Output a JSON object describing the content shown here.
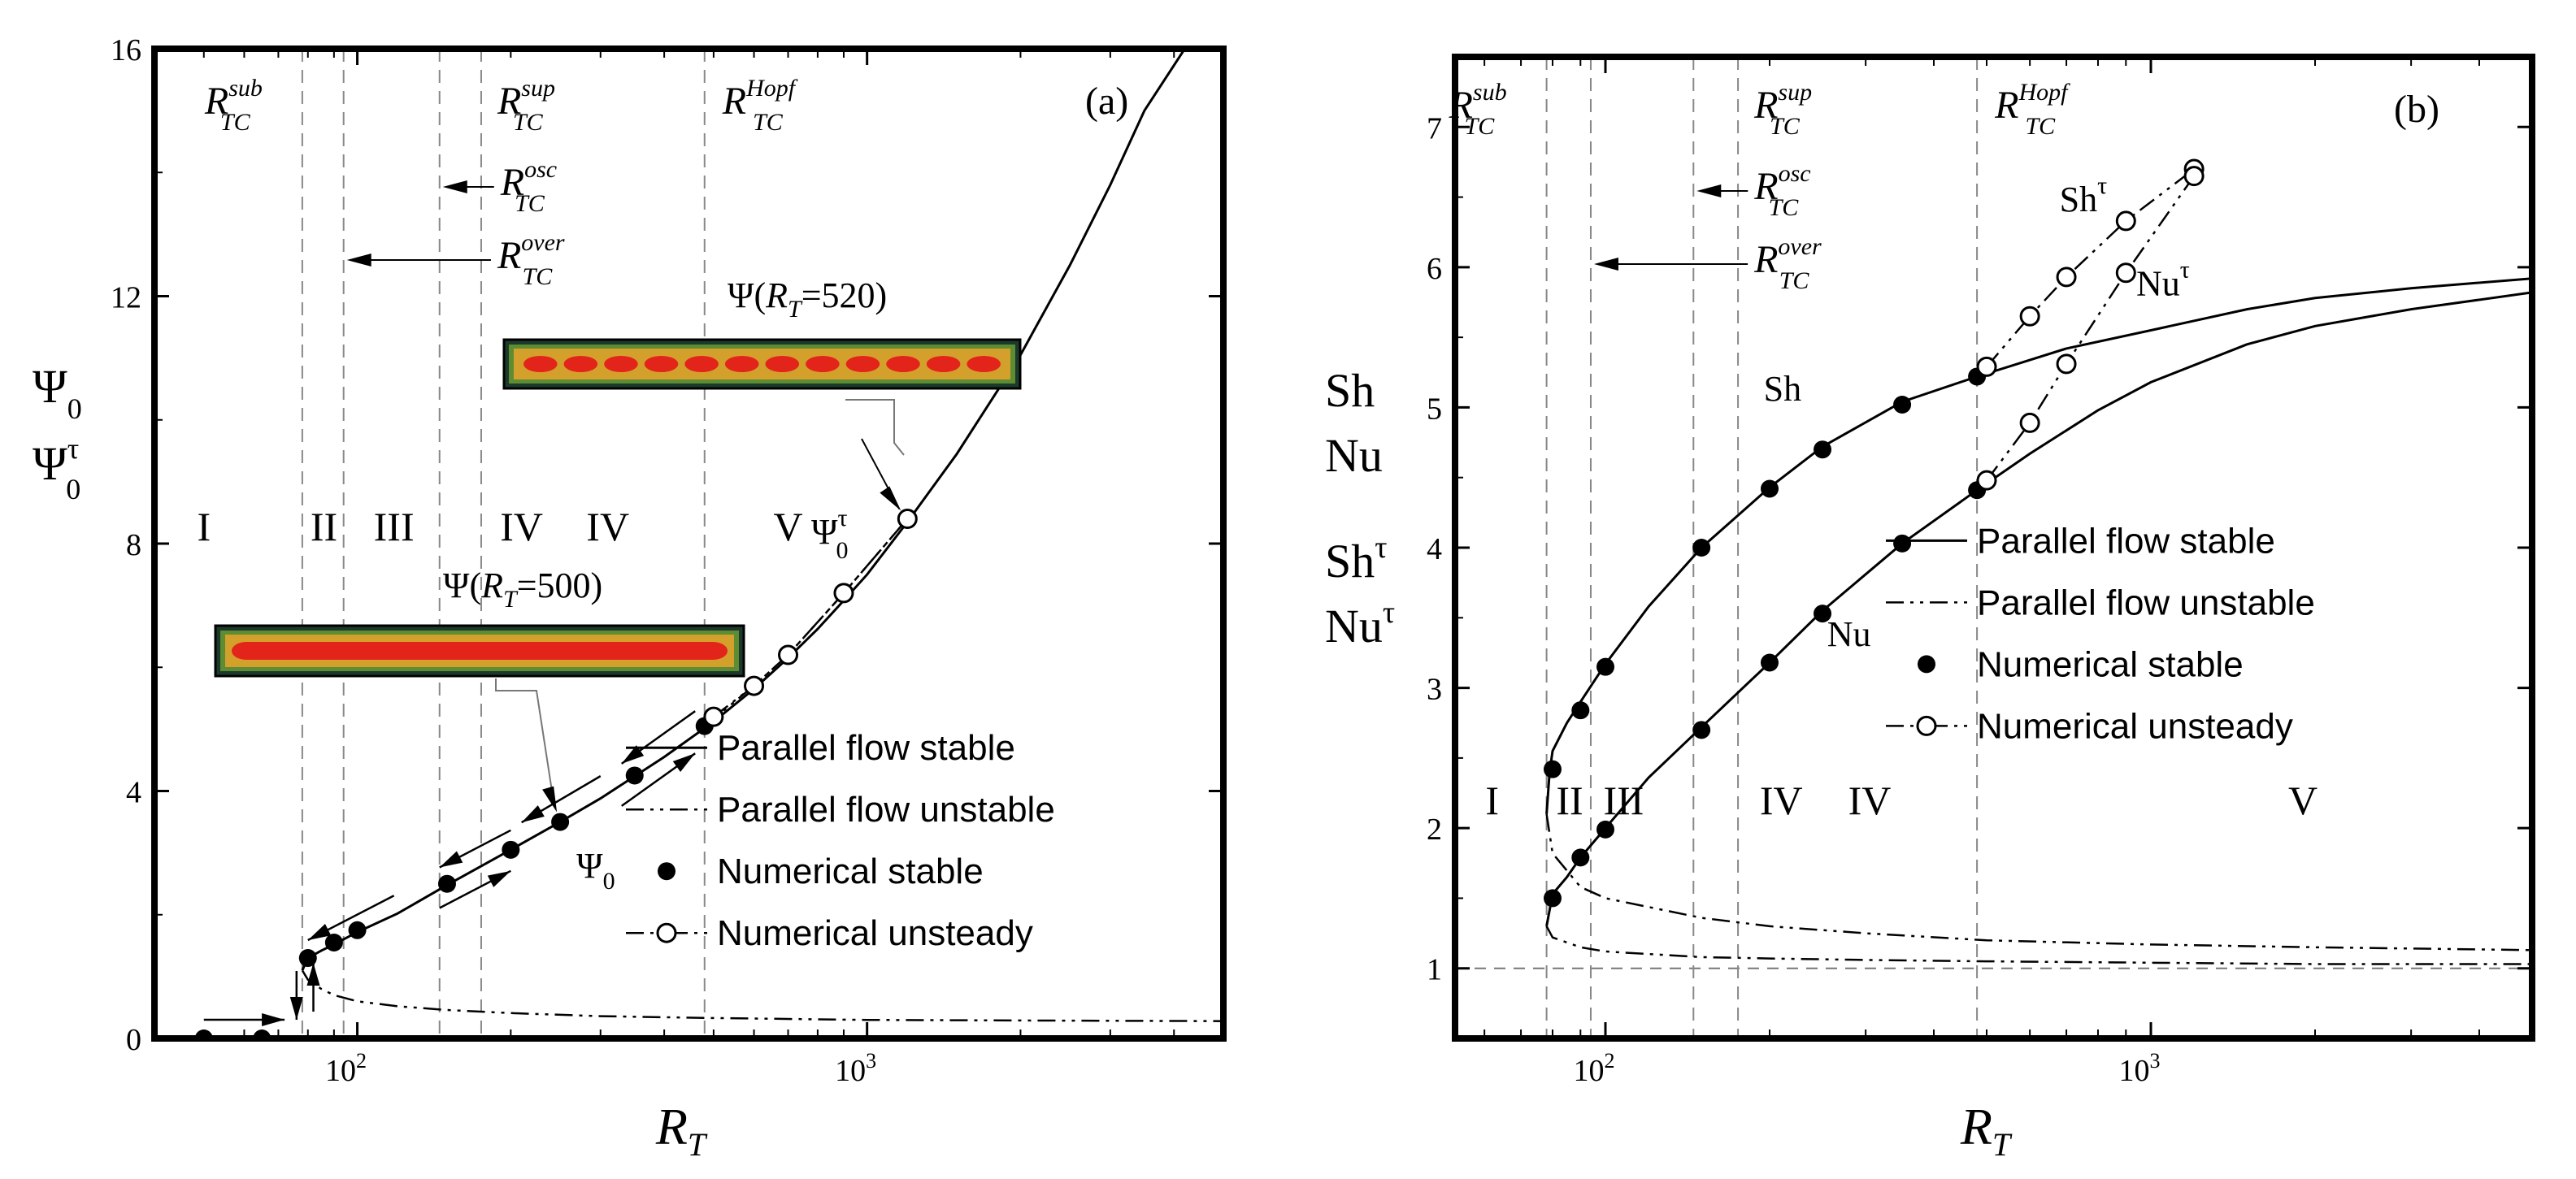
{
  "chart_data": [
    {
      "type": "line",
      "panel_label": "(a)",
      "xlabel": "R_T",
      "xscale": "log",
      "xlim": [
        40,
        5000
      ],
      "xticks": [
        {
          "value": 100,
          "label": "10^2"
        },
        {
          "value": 1000,
          "label": "10^3"
        }
      ],
      "ylim": [
        0,
        16
      ],
      "yticks": [
        0,
        4,
        8,
        12,
        16
      ],
      "ylabels": [
        "Ψ0",
        "Ψ0τ"
      ],
      "thresholds": [
        {
          "name": "R_TC^sub",
          "x": 78,
          "label": "R",
          "sub": "TC",
          "sup": "sub"
        },
        {
          "name": "R_TC^over",
          "x": 94,
          "label": "R",
          "sub": "TC",
          "sup": "over"
        },
        {
          "name": "R_TC^osc",
          "x": 145,
          "label": "R",
          "sub": "TC",
          "sup": "osc"
        },
        {
          "name": "R_TC^sup",
          "x": 175,
          "label": "R",
          "sub": "TC",
          "sup": "sup"
        },
        {
          "name": "R_TC^Hopf",
          "x": 480,
          "label": "R",
          "sub": "TC",
          "sup": "Hopf"
        }
      ],
      "regions": [
        "I",
        "II",
        "III",
        "IV",
        "IV",
        "V"
      ],
      "series": [
        {
          "name": "Parallel flow stable",
          "style": "solid",
          "x": [
            78,
            80,
            85,
            90,
            100,
            120,
            150,
            200,
            250,
            300,
            400,
            500,
            600,
            700,
            800,
            900,
            1000,
            1200,
            1500,
            2000,
            2500,
            3000,
            3500,
            4200
          ],
          "y": [
            1.1,
            1.3,
            1.42,
            1.52,
            1.72,
            2.02,
            2.48,
            3.05,
            3.5,
            3.88,
            4.55,
            5.12,
            5.65,
            6.15,
            6.62,
            7.08,
            7.5,
            8.35,
            9.45,
            11.05,
            12.5,
            13.8,
            15.0,
            16.0
          ]
        },
        {
          "name": "Parallel flow unstable",
          "style": "dashdot",
          "x": [
            78,
            80,
            85,
            90,
            100,
            120,
            150,
            200,
            300,
            500,
            1000,
            2000,
            5000
          ],
          "y": [
            1.1,
            0.95,
            0.8,
            0.7,
            0.6,
            0.52,
            0.46,
            0.41,
            0.36,
            0.33,
            0.3,
            0.29,
            0.28
          ]
        },
        {
          "name": "Numerical stable",
          "style": "filled-marker",
          "x": [
            50,
            65,
            80,
            90,
            100,
            150,
            200,
            250,
            350,
            480
          ],
          "y": [
            0,
            0,
            1.3,
            1.55,
            1.75,
            2.5,
            3.05,
            3.5,
            4.25,
            5.05
          ]
        },
        {
          "name": "Numerical unsteady",
          "style": "open-marker",
          "x": [
            500,
            600,
            700,
            900,
            1200
          ],
          "y": [
            5.2,
            5.7,
            6.2,
            7.2,
            8.4
          ]
        },
        {
          "name": "Ψ0τ curve",
          "style": "dashdot",
          "x": [
            480,
            600,
            700,
            900,
            1200
          ],
          "y": [
            5.05,
            5.7,
            6.2,
            7.2,
            8.4
          ]
        }
      ],
      "legend": [
        "Parallel flow stable",
        "Parallel flow unstable",
        "Numerical stable",
        "Numerical unsteady"
      ],
      "annotations": [
        "Ψ(R_T=520)",
        "Ψ(R_T=500)",
        "Ψ0",
        "Ψ0τ"
      ],
      "inset_labels": {
        "top": {
          "base": "Ψ(",
          "var": "R",
          "sub": "T",
          "rest": "=520)"
        },
        "bottom": {
          "base": "Ψ(",
          "var": "R",
          "sub": "T",
          "rest": "=500)"
        }
      },
      "curve_labels": {
        "stable": "Ψ",
        "stable_sub": "0",
        "unsteady": "Ψ",
        "unsteady_sub": "0",
        "unsteady_sup": "τ"
      }
    },
    {
      "type": "line",
      "panel_label": "(b)",
      "xlabel": "R_T",
      "xscale": "log",
      "xlim": [
        53,
        5000
      ],
      "xticks": [
        {
          "value": 100,
          "label": "10^2"
        },
        {
          "value": 1000,
          "label": "10^3"
        }
      ],
      "ylim": [
        0.5,
        7.5
      ],
      "yticks": [
        1,
        2,
        3,
        4,
        5,
        6,
        7
      ],
      "ylabels": [
        "Sh",
        "Nu",
        "Shτ",
        "Nuτ"
      ],
      "reference_line": {
        "y": 1,
        "style": "dashed"
      },
      "thresholds": [
        {
          "name": "R_TC^sub",
          "x": 78,
          "label": "R",
          "sub": "TC",
          "sup": "sub"
        },
        {
          "name": "R_TC^over",
          "x": 94,
          "label": "R",
          "sub": "TC",
          "sup": "over"
        },
        {
          "name": "R_TC^osc",
          "x": 145,
          "label": "R",
          "sub": "TC",
          "sup": "osc"
        },
        {
          "name": "R_TC^sup",
          "x": 175,
          "label": "R",
          "sub": "TC",
          "sup": "sup"
        },
        {
          "name": "R_TC^Hopf",
          "x": 480,
          "label": "R",
          "sub": "TC",
          "sup": "Hopf"
        }
      ],
      "regions": [
        "I",
        "II",
        "III",
        "IV",
        "IV",
        "V"
      ],
      "series": [
        {
          "name": "Sh parallel stable",
          "style": "solid",
          "x": [
            78,
            79,
            80,
            85,
            90,
            100,
            120,
            150,
            200,
            250,
            350,
            480,
            700,
            1000,
            1500,
            2000,
            3000,
            5000
          ],
          "y": [
            2.1,
            2.4,
            2.55,
            2.75,
            2.9,
            3.17,
            3.58,
            4.0,
            4.43,
            4.72,
            5.04,
            5.22,
            5.42,
            5.55,
            5.7,
            5.78,
            5.85,
            5.92
          ]
        },
        {
          "name": "Nu parallel stable",
          "style": "solid",
          "x": [
            78,
            80,
            85,
            90,
            100,
            120,
            150,
            200,
            250,
            350,
            480,
            600,
            800,
            1000,
            1500,
            2000,
            3000,
            5000
          ],
          "y": [
            1.3,
            1.53,
            1.65,
            1.79,
            2.0,
            2.36,
            2.72,
            3.18,
            3.55,
            4.03,
            4.41,
            4.67,
            4.98,
            5.18,
            5.45,
            5.58,
            5.7,
            5.82
          ]
        },
        {
          "name": "Sh parallel unstable",
          "style": "dashdot",
          "x": [
            78,
            80,
            90,
            100,
            150,
            200,
            300,
            500,
            1000,
            2000,
            5000
          ],
          "y": [
            2.1,
            1.82,
            1.58,
            1.5,
            1.36,
            1.3,
            1.25,
            1.2,
            1.17,
            1.15,
            1.13
          ]
        },
        {
          "name": "Nu parallel unstable",
          "style": "dashdot",
          "x": [
            78,
            80,
            90,
            100,
            150,
            200,
            300,
            500,
            1000,
            2000,
            5000
          ],
          "y": [
            1.3,
            1.22,
            1.15,
            1.12,
            1.08,
            1.07,
            1.06,
            1.05,
            1.04,
            1.03,
            1.03
          ]
        },
        {
          "name": "Sh numerical stable",
          "style": "filled-marker",
          "x": [
            80,
            90,
            100,
            150,
            200,
            250,
            350,
            480
          ],
          "y": [
            2.42,
            2.84,
            3.15,
            4.0,
            4.42,
            4.7,
            5.02,
            5.22
          ]
        },
        {
          "name": "Nu numerical stable",
          "style": "filled-marker",
          "x": [
            80,
            90,
            100,
            150,
            200,
            250,
            350,
            480
          ],
          "y": [
            1.5,
            1.79,
            1.99,
            2.7,
            3.18,
            3.53,
            4.03,
            4.41
          ]
        },
        {
          "name": "Sh numerical unsteady",
          "style": "open-marker",
          "x": [
            500,
            600,
            700,
            900,
            1200
          ],
          "y": [
            5.29,
            5.65,
            5.93,
            6.33,
            6.7
          ]
        },
        {
          "name": "Nu numerical unsteady",
          "style": "open-marker",
          "x": [
            500,
            600,
            700,
            900,
            1200
          ],
          "y": [
            4.48,
            4.89,
            5.31,
            5.96,
            6.65
          ]
        }
      ],
      "legend": [
        "Parallel flow stable",
        "Parallel flow unstable",
        "Numerical stable",
        "Numerical unsteady"
      ],
      "annotations": [
        "Sh",
        "Nu",
        "Shτ",
        "Nuτ"
      ]
    }
  ]
}
